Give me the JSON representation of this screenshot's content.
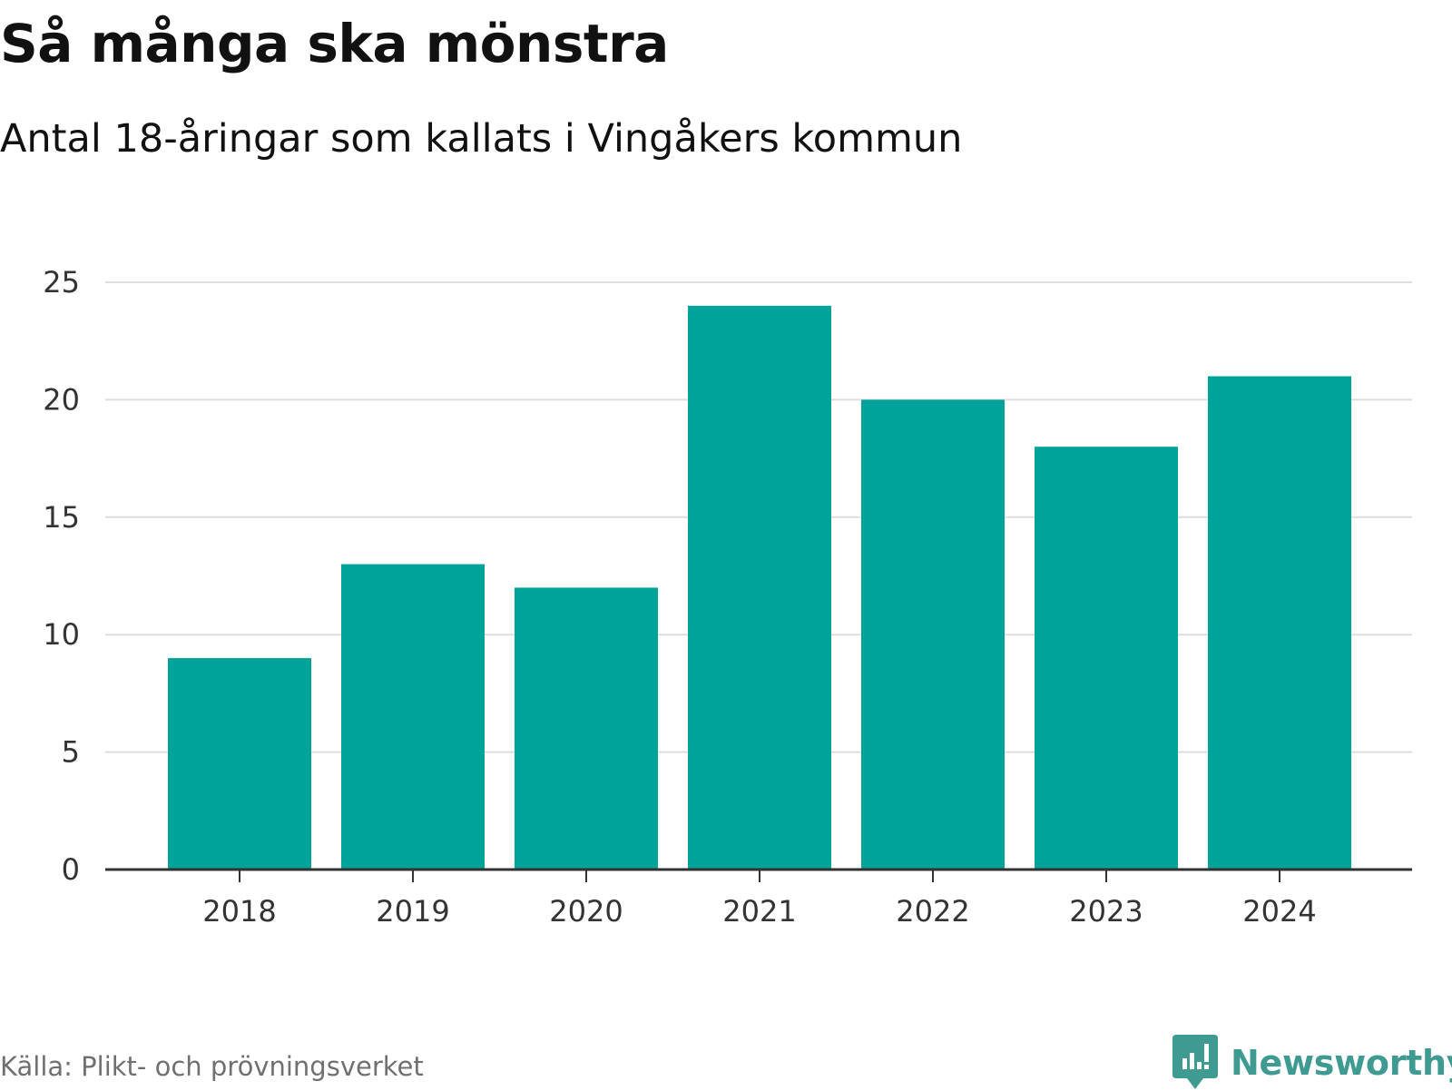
{
  "colors": {
    "bar": "#00a39a",
    "grid": "#dddddd",
    "axis": "#333333",
    "tick_text": "#333333",
    "brand": "#3f9b92",
    "source": "#707070"
  },
  "source_text": "Källa: Plikt- och prövningsverket",
  "brand": {
    "name": "Newsworthy",
    "icon": "newsworthy-logo-icon"
  },
  "chart_data": {
    "type": "bar",
    "title": "Så många ska mönstra",
    "subtitle": "Antal 18-åringar som kallats i Vingåkers kommun",
    "categories": [
      "2018",
      "2019",
      "2020",
      "2021",
      "2022",
      "2023",
      "2024"
    ],
    "values": [
      9,
      13,
      12,
      24,
      20,
      18,
      21
    ],
    "xlabel": "",
    "ylabel": "",
    "ylim": [
      0,
      25
    ],
    "yticks": [
      0,
      5,
      10,
      15,
      20,
      25
    ],
    "grid": true,
    "legend": "none"
  }
}
